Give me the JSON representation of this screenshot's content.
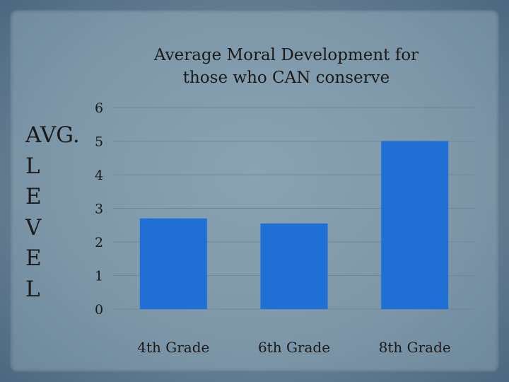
{
  "chart_data": {
    "type": "bar",
    "title": "Average Moral Development for those who CAN conserve",
    "title_lines": [
      "Average Moral Development for",
      "those who CAN conserve"
    ],
    "ylabel": "AVG. LEVEL",
    "ylabel_lines": [
      "AVG.",
      "L",
      "E",
      "V",
      "E",
      "L"
    ],
    "xlabel": "",
    "categories": [
      "4th Grade",
      "6th Grade",
      "8th Grade"
    ],
    "values": [
      2.7,
      2.55,
      5.0
    ],
    "ylim": [
      0,
      6
    ],
    "yticks": [
      0,
      1,
      2,
      3,
      4,
      5,
      6
    ],
    "grid": true,
    "bar_color": "#1f6fd6",
    "grid_color": "#6f8799"
  }
}
